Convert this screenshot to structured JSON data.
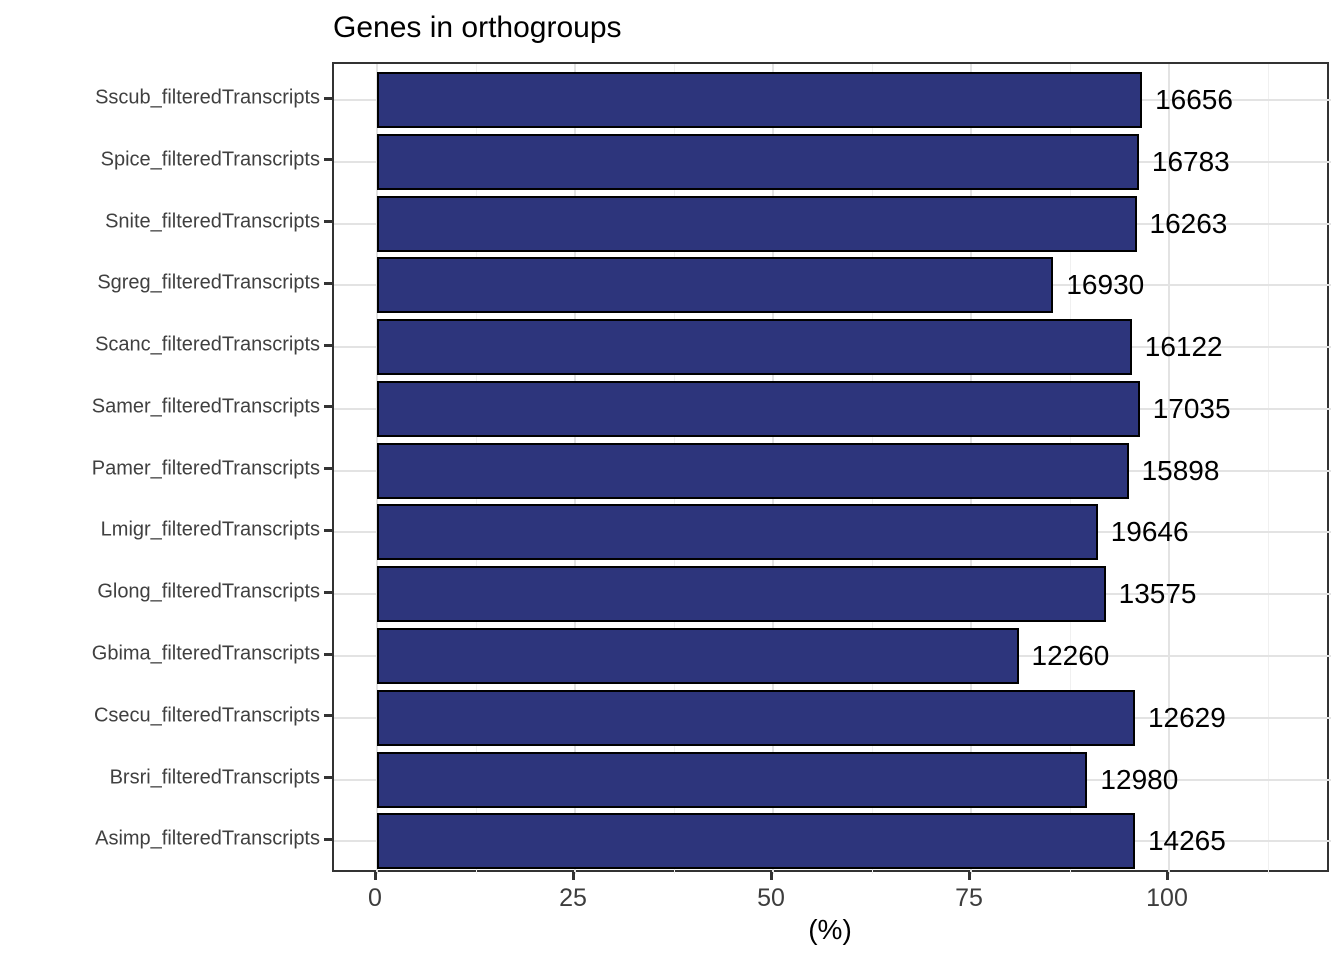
{
  "title": "Genes in orthogroups",
  "chart_data": {
    "type": "bar",
    "orientation": "horizontal",
    "title": "Genes in orthogroups",
    "xlabel": "(%)",
    "ylabel": "",
    "xlim": [
      0,
      117
    ],
    "x_ticks": [
      0,
      25,
      50,
      75,
      100
    ],
    "x_minor_ticks": [
      12.5,
      37.5,
      62.5,
      87.5,
      112.5
    ],
    "grid": "major-and-minor-vertical, major-horizontal",
    "legend": "none",
    "bar_fill_color": "#2d357c",
    "bar_border_color": "#000000",
    "categories": [
      "Sscub_filteredTranscripts",
      "Spice_filteredTranscripts",
      "Snite_filteredTranscripts",
      "Sgreg_filteredTranscripts",
      "Scanc_filteredTranscripts",
      "Samer_filteredTranscripts",
      "Pamer_filteredTranscripts",
      "Lmigr_filteredTranscripts",
      "Glong_filteredTranscripts",
      "Gbima_filteredTranscripts",
      "Csecu_filteredTranscripts",
      "Brsri_filteredTranscripts",
      "Asimp_filteredTranscripts"
    ],
    "values_pct": [
      96.6,
      96.2,
      95.9,
      85.4,
      95.3,
      96.3,
      94.9,
      91.0,
      92.0,
      81.0,
      95.7,
      89.7,
      95.7
    ],
    "bar_labels": [
      "16656",
      "16783",
      "16263",
      "16930",
      "16122",
      "17035",
      "15898",
      "19646",
      "13575",
      "12260",
      "12629",
      "12980",
      "14265"
    ]
  }
}
